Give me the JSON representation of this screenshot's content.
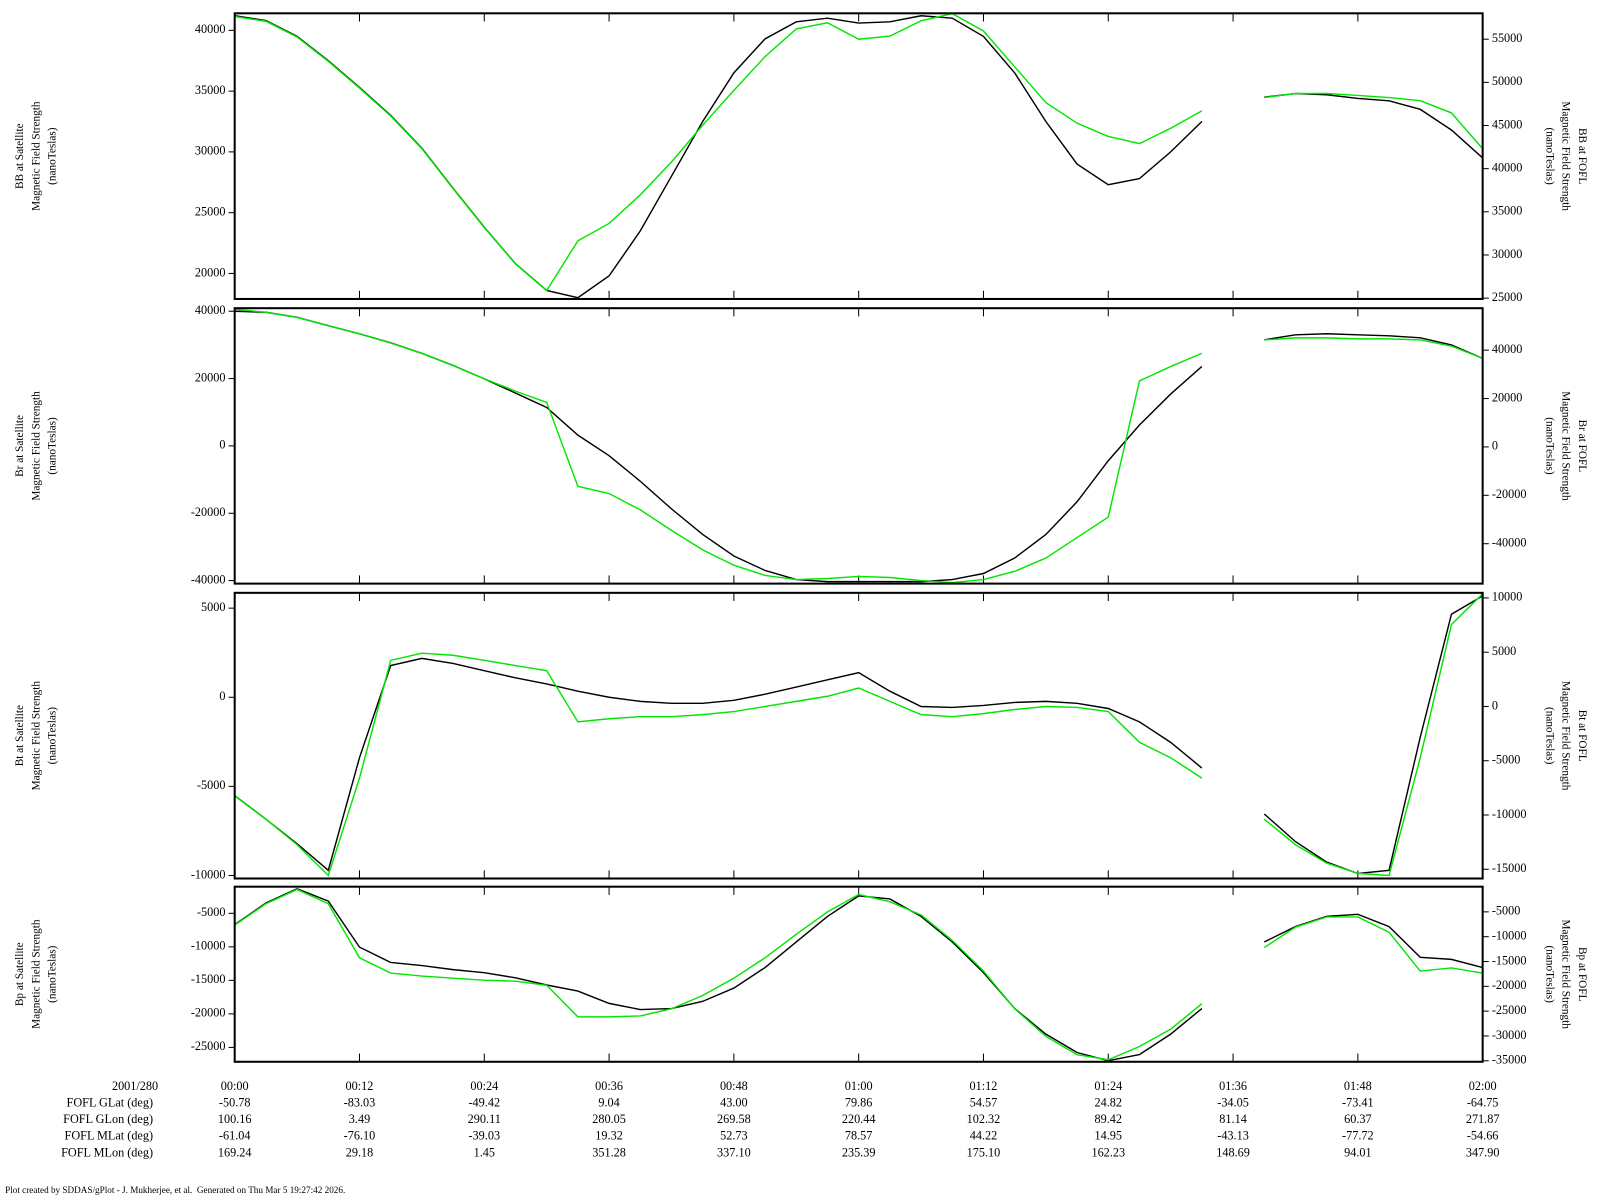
{
  "chart_data": [
    {
      "type": "line",
      "ylabel": [
        "BB at Satellite",
        "Magnetic Field Strength",
        "(nanoTeslas)"
      ],
      "y2label": [
        "BB at FOFL",
        "Magnetic Field Strength",
        "(nanoTeslas)"
      ],
      "ylim": [
        17900,
        41400
      ],
      "yticks": [
        20000,
        25000,
        30000,
        35000,
        40000
      ],
      "y2lim": [
        24900,
        58000
      ],
      "y2ticks": [
        25000,
        30000,
        35000,
        40000,
        45000,
        50000,
        55000
      ],
      "x": [
        "00:00",
        "00:03",
        "00:06",
        "00:09",
        "00:12",
        "00:15",
        "00:18",
        "00:21",
        "00:24",
        "00:27",
        "00:30",
        "00:33",
        "00:36",
        "00:39",
        "00:42",
        "00:45",
        "00:48",
        "00:51",
        "00:54",
        "00:57",
        "01:00",
        "01:03",
        "01:06",
        "01:09",
        "01:12",
        "01:15",
        "01:18",
        "01:21",
        "01:24",
        "01:27",
        "01:30",
        "01:33",
        "01:36",
        "01:39",
        "01:42",
        "01:45",
        "01:48",
        "01:51",
        "01:54",
        "01:57",
        "02:00"
      ],
      "series": [
        {
          "color": "#000000",
          "values": [
            41200,
            40800,
            39500,
            37500,
            35300,
            33000,
            30300,
            27000,
            23800,
            20800,
            18600,
            18000,
            19800,
            23500,
            28000,
            32500,
            36500,
            39300,
            40700,
            41000,
            40600,
            40700,
            41200,
            41000,
            39500,
            36500,
            32500,
            29000,
            27300,
            27800,
            30000,
            32500,
            null,
            34500,
            34800,
            34700,
            34400,
            34200,
            33500,
            31800,
            29500
          ]
        },
        {
          "color": "#00e600",
          "axis": "y2",
          "values": [
            57630,
            57080,
            55250,
            52440,
            49340,
            46100,
            42310,
            37680,
            33180,
            28970,
            25870,
            31640,
            33650,
            36970,
            40770,
            45040,
            49070,
            52980,
            56190,
            56900,
            55000,
            55360,
            57130,
            57960,
            55950,
            51800,
            47650,
            45270,
            43730,
            42900,
            44680,
            46700,
            null,
            48240,
            48710,
            48710,
            48480,
            48240,
            47880,
            46460,
            42310
          ]
        }
      ]
    },
    {
      "type": "line",
      "ylabel": [
        "Br at Satellite",
        "Magnetic Field Strength",
        "(nanoTeslas)"
      ],
      "y2label": [
        "Br at FOFL",
        "Magnetic Field Strength",
        "(nanoTeslas)"
      ],
      "ylim": [
        -40900,
        40900
      ],
      "yticks": [
        -40000,
        -20000,
        0,
        20000,
        40000
      ],
      "y2lim": [
        -56500,
        57350
      ],
      "y2ticks": [
        -40000,
        -20000,
        0,
        20000,
        40000
      ],
      "x": [
        "00:00",
        "00:03",
        "00:06",
        "00:09",
        "00:12",
        "00:15",
        "00:18",
        "00:21",
        "00:24",
        "00:27",
        "00:30",
        "00:33",
        "00:36",
        "00:39",
        "00:42",
        "00:45",
        "00:48",
        "00:51",
        "00:54",
        "00:57",
        "01:00",
        "01:03",
        "01:06",
        "01:09",
        "01:12",
        "01:15",
        "01:18",
        "01:21",
        "01:24",
        "01:27",
        "01:30",
        "01:33",
        "01:36",
        "01:39",
        "01:42",
        "01:45",
        "01:48",
        "01:51",
        "01:54",
        "01:57",
        "02:00"
      ],
      "series": [
        {
          "color": "#000000",
          "values": [
            40000,
            39700,
            38200,
            35700,
            33300,
            30600,
            27500,
            23900,
            19900,
            15700,
            11400,
            3200,
            -2900,
            -10500,
            -18700,
            -26300,
            -32700,
            -37000,
            -39700,
            -40300,
            -40300,
            -40300,
            -40300,
            -39700,
            -37900,
            -33300,
            -26300,
            -16600,
            -4400,
            6200,
            15400,
            23600,
            null,
            31500,
            33000,
            33300,
            33000,
            32700,
            32100,
            30000,
            26000
          ]
        },
        {
          "color": "#00e600",
          "axis": "y2",
          "values": [
            56930,
            55660,
            53540,
            50160,
            46770,
            42960,
            38730,
            33650,
            28150,
            23070,
            18410,
            -16300,
            -19260,
            -26030,
            -34500,
            -42540,
            -48890,
            -53120,
            -54810,
            -54390,
            -53540,
            -53970,
            -55230,
            -56080,
            -54810,
            -51430,
            -45930,
            -37460,
            -29000,
            27300,
            33230,
            38730,
            null,
            44230,
            45080,
            45080,
            44660,
            44660,
            44230,
            41690,
            36610
          ]
        }
      ]
    },
    {
      "type": "line",
      "ylabel": [
        "Bt at Satellite",
        "Magnetic Field Strength",
        "(nanoTeslas)"
      ],
      "y2label": [
        "Bt at FOFL",
        "Magnetic Field Strength",
        "(nanoTeslas)"
      ],
      "ylim": [
        -10170,
        5860
      ],
      "yticks": [
        -10000,
        -5000,
        0,
        5000
      ],
      "y2lim": [
        -15850,
        10470
      ],
      "y2ticks": [
        -15000,
        -10000,
        -5000,
        0,
        5000,
        10000
      ],
      "x": [
        "00:00",
        "00:03",
        "00:06",
        "00:09",
        "00:12",
        "00:15",
        "00:18",
        "00:21",
        "00:24",
        "00:27",
        "00:30",
        "00:33",
        "00:36",
        "00:39",
        "00:42",
        "00:45",
        "00:48",
        "00:51",
        "00:54",
        "00:57",
        "01:00",
        "01:03",
        "01:06",
        "01:09",
        "01:12",
        "01:15",
        "01:18",
        "01:21",
        "01:24",
        "01:27",
        "01:30",
        "01:33",
        "01:36",
        "01:39",
        "01:42",
        "01:45",
        "01:48",
        "01:51",
        "01:54",
        "01:57",
        "02:00"
      ],
      "series": [
        {
          "color": "#000000",
          "values": [
            -5520,
            -6840,
            -8220,
            -9710,
            -3390,
            1780,
            2180,
            1900,
            1490,
            1090,
            750,
            340,
            0,
            -230,
            -340,
            -340,
            -170,
            170,
            570,
            980,
            1380,
            340,
            -520,
            -570,
            -460,
            -290,
            -230,
            -340,
            -630,
            -1380,
            -2530,
            -3970,
            null,
            -6550,
            -8100,
            -9250,
            -9890,
            -9710,
            -2240,
            4660,
            5690
          ]
        },
        {
          "color": "#00e600",
          "axis": "y2",
          "values": [
            -8210,
            -10380,
            -12740,
            -15570,
            -6600,
            4250,
            4910,
            4720,
            4250,
            3770,
            3300,
            -1420,
            -1130,
            -940,
            -940,
            -750,
            -470,
            0,
            470,
            940,
            1700,
            470,
            -750,
            -940,
            -660,
            -280,
            0,
            -90,
            -470,
            -3300,
            -4720,
            -6600,
            null,
            -10380,
            -12740,
            -14430,
            -15380,
            -15570,
            -4720,
            7550,
            10380
          ]
        }
      ]
    },
    {
      "type": "line",
      "ylabel": [
        "Bp at Satellite",
        "Magnetic Field Strength",
        "(nanoTeslas)"
      ],
      "y2label": [
        "Bp at FOFL",
        "Magnetic Field Strength",
        "(nanoTeslas)"
      ],
      "ylim": [
        -27140,
        -1030
      ],
      "yticks": [
        -25000,
        -20000,
        -15000,
        -10000,
        -5000
      ],
      "y2lim": [
        -35200,
        70
      ],
      "y2ticks": [
        -35000,
        -30000,
        -25000,
        -20000,
        -15000,
        -10000,
        -5000
      ],
      "x": [
        "00:00",
        "00:03",
        "00:06",
        "00:09",
        "00:12",
        "00:15",
        "00:18",
        "00:21",
        "00:24",
        "00:27",
        "00:30",
        "00:33",
        "00:36",
        "00:39",
        "00:42",
        "00:45",
        "00:48",
        "00:51",
        "00:54",
        "00:57",
        "01:00",
        "01:03",
        "01:06",
        "01:09",
        "01:12",
        "01:15",
        "01:18",
        "01:21",
        "01:24",
        "01:27",
        "01:30",
        "01:33",
        "01:36",
        "01:39",
        "01:42",
        "01:45",
        "01:48",
        "01:51",
        "01:54",
        "01:57",
        "02:00"
      ],
      "xticks": [
        "00:00",
        "00:12",
        "00:24",
        "00:36",
        "00:48",
        "01:00",
        "01:12",
        "01:24",
        "01:36",
        "01:48",
        "02:00"
      ],
      "series": [
        {
          "color": "#000000",
          "values": [
            -6680,
            -3470,
            -1340,
            -3170,
            -10040,
            -12330,
            -12790,
            -13400,
            -13850,
            -14620,
            -15690,
            -16600,
            -18430,
            -19350,
            -19200,
            -18130,
            -16150,
            -13090,
            -9270,
            -5460,
            -2400,
            -2860,
            -5460,
            -9270,
            -13850,
            -19200,
            -23020,
            -25760,
            -26980,
            -26070,
            -23020,
            -19200,
            null,
            -9270,
            -6980,
            -5460,
            -5150,
            -6980,
            -11560,
            -11870,
            -13090
          ]
        },
        {
          "color": "#00e600",
          "axis": "y2",
          "values": [
            -7670,
            -3360,
            -480,
            -3360,
            -14250,
            -17330,
            -17940,
            -18360,
            -18770,
            -18970,
            -19790,
            -26160,
            -26160,
            -25960,
            -24520,
            -21850,
            -18360,
            -14250,
            -9520,
            -5000,
            -1510,
            -2950,
            -5620,
            -10750,
            -16920,
            -24520,
            -30070,
            -33770,
            -34790,
            -32120,
            -28630,
            -23490,
            null,
            -12190,
            -8080,
            -6030,
            -6030,
            -9110,
            -16920,
            -16300,
            -17330
          ]
        }
      ]
    }
  ],
  "ephemeris": {
    "date": "2001/280",
    "rows": [
      {
        "label": "FOFL GLat (deg)",
        "values": [
          "-50.78",
          "-83.03",
          "-49.42",
          "9.04",
          "43.00",
          "79.86",
          "54.57",
          "24.82",
          "-34.05",
          "-73.41",
          "-64.75"
        ]
      },
      {
        "label": "FOFL GLon (deg)",
        "values": [
          "100.16",
          "3.49",
          "290.11",
          "280.05",
          "269.58",
          "220.44",
          "102.32",
          "89.42",
          "81.14",
          "60.37",
          "271.87"
        ]
      },
      {
        "label": "FOFL MLat (deg)",
        "values": [
          "-61.04",
          "-76.10",
          "-39.03",
          "19.32",
          "52.73",
          "78.57",
          "44.22",
          "14.95",
          "-43.13",
          "-77.72",
          "-54.66"
        ]
      },
      {
        "label": "FOFL MLon (deg)",
        "values": [
          "169.24",
          "29.18",
          "1.45",
          "351.28",
          "337.10",
          "235.39",
          "175.10",
          "162.23",
          "148.69",
          "94.01",
          "347.90"
        ]
      }
    ]
  },
  "footer": "Plot created by SDDAS/gPlot - J. Mukherjee, et al.  Generated on Thu Mar 5 19:27:42 2026."
}
